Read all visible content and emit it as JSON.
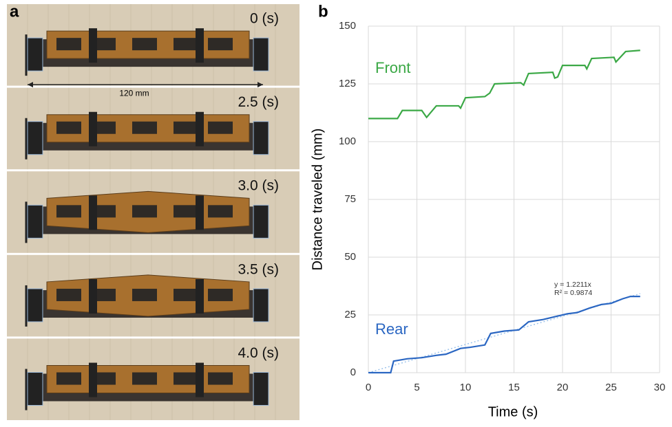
{
  "panel_a": {
    "label": "a",
    "frames": [
      "0 (s)",
      "2.5 (s)",
      "3.0 (s)",
      "3.5 (s)",
      "4.0 (s)"
    ],
    "scale_label": "120 mm"
  },
  "chart_data": {
    "type": "line",
    "panel_label": "b",
    "x_label": "Time (s)",
    "y_label": "Distance traveled (mm)",
    "xlim": [
      0,
      30
    ],
    "ylim": [
      0,
      150
    ],
    "xticks": [
      0,
      5,
      10,
      15,
      20,
      25,
      30
    ],
    "yticks": [
      0,
      25,
      50,
      75,
      100,
      125,
      150
    ],
    "grid": true,
    "series": [
      {
        "name": "Front",
        "color": "#3aa845",
        "x": [
          0,
          3,
          3.5,
          5.5,
          6,
          7,
          9.3,
          9.5,
          10,
          12,
          12.5,
          13,
          15.7,
          16,
          16.5,
          19,
          19.2,
          19.5,
          20,
          22.3,
          22.5,
          23,
          25.3,
          25.5,
          26.5,
          28
        ],
        "values": [
          110,
          110,
          113.5,
          113.5,
          110.5,
          115.5,
          115.5,
          114.5,
          119,
          119.5,
          121,
          125,
          125.5,
          124.5,
          129.5,
          130,
          127.5,
          128,
          133,
          133,
          131.5,
          136,
          136.5,
          134.5,
          139,
          139.5
        ]
      },
      {
        "name": "Rear",
        "color": "#2a66c2",
        "x": [
          0,
          2.3,
          2.6,
          4,
          5.5,
          7,
          8,
          9.5,
          10.5,
          12,
          12.6,
          14,
          15.5,
          16.5,
          18,
          19,
          20.5,
          21.5,
          22.8,
          24,
          25,
          26.2,
          27,
          28
        ],
        "values": [
          0,
          0,
          5,
          6,
          6.5,
          7.5,
          8,
          10.5,
          11,
          12,
          17,
          18,
          18.5,
          22,
          23,
          24,
          25.5,
          26,
          28,
          29.5,
          30,
          32,
          33,
          33
        ]
      }
    ],
    "trendline": {
      "x": [
        0,
        28
      ],
      "values": [
        0,
        34.19
      ],
      "color": "#9cc3ec"
    },
    "annotations": [
      "y = 1.2211x",
      "R² = 0.9874"
    ]
  }
}
